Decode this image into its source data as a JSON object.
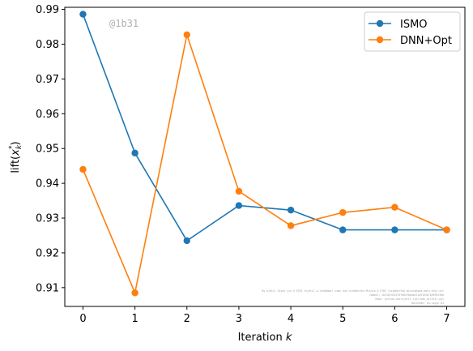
{
  "watermark": "@1b31",
  "credit_lines": [
    "By Kjetil Olsen Lye @ ETHZ <kjetil.o.lye@gmail.com> and Siddhartha Mishra @ ETHZ <siddhartha.mishra@sam.math.ethz.ch>",
    "Commit: 1b31074553707b8c9bad4d11a9163a7b2699c3db",
    "Repo: github.com:kjetil-lye/ismo_airfoil.git",
    "Hostname: eu-login-01"
  ],
  "chart_data": {
    "type": "line",
    "title": "",
    "xlabel": "Iteration k",
    "ylabel": "lift(x_k^*)",
    "x": [
      0,
      1,
      2,
      3,
      4,
      5,
      6,
      7
    ],
    "xticks": [
      "0",
      "1",
      "2",
      "3",
      "4",
      "5",
      "6",
      "7"
    ],
    "yticks": [
      "0.91",
      "0.92",
      "0.93",
      "0.94",
      "0.95",
      "0.96",
      "0.97",
      "0.98",
      "0.99"
    ],
    "xlim": [
      -0.35,
      7.35
    ],
    "ylim": [
      0.9046,
      0.9906
    ],
    "grid": false,
    "legend_position": "upper right",
    "series": [
      {
        "name": "ISMO",
        "color": "#1f77b4",
        "values": [
          0.9886,
          0.9487,
          0.9235,
          0.9336,
          0.9323,
          0.9266,
          0.9266,
          0.9266
        ]
      },
      {
        "name": "DNN+Opt",
        "color": "#ff7f0e",
        "values": [
          0.944,
          0.9085,
          0.9827,
          0.9377,
          0.9278,
          0.9316,
          0.9331,
          0.9266
        ]
      }
    ]
  }
}
